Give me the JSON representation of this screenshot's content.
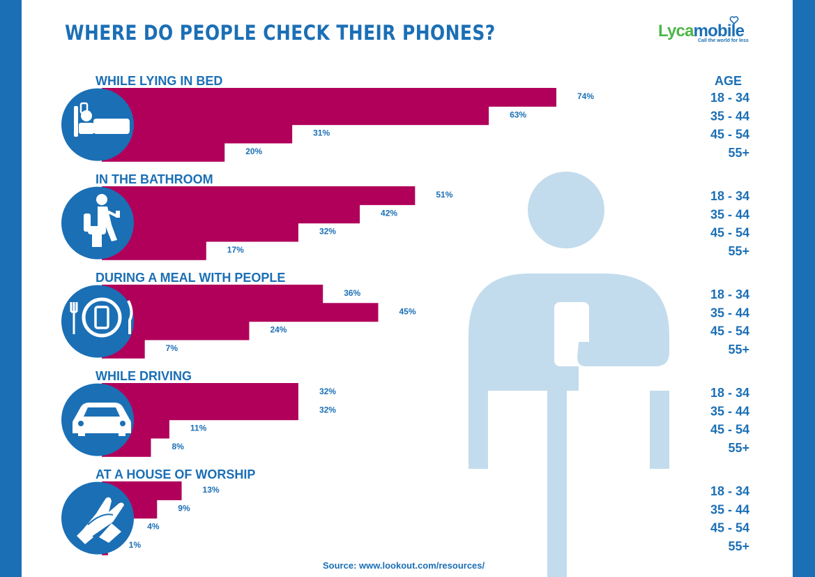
{
  "title": "WHERE DO PEOPLE CHECK THEIR PHONES?",
  "logo": {
    "name_green": "Lyca",
    "name_blue": "mobile",
    "tagline": "Call the world for less",
    "icon": "heart-icon"
  },
  "source": "Source: www.lookout.com/resources/",
  "colors": {
    "bar": "#b0005a",
    "brand_blue": "#1b6fb5",
    "figure": "#c3dced",
    "logo_green": "#4cb648"
  },
  "chart_data": {
    "type": "bar",
    "orientation": "horizontal",
    "unit": "%",
    "age_header": "AGE",
    "age_groups": [
      "18 - 34",
      "35 - 44",
      "45 - 54",
      "55+"
    ],
    "groups": [
      {
        "label": "WHILE LYING IN BED",
        "icon": "bed-icon",
        "values": [
          74,
          63,
          31,
          20
        ],
        "value_labels": [
          "74%",
          "63%",
          "31%",
          "20%"
        ]
      },
      {
        "label": "IN THE BATHROOM",
        "icon": "toilet-icon",
        "values": [
          51,
          42,
          32,
          17
        ],
        "value_labels": [
          "51%",
          "42%",
          "32%",
          "17%"
        ]
      },
      {
        "label": "DURING A MEAL WITH PEOPLE",
        "icon": "plate-phone-icon",
        "values": [
          36,
          45,
          24,
          7
        ],
        "value_labels": [
          "36%",
          "45%",
          "24%",
          "7%"
        ]
      },
      {
        "label": "WHILE DRIVING",
        "icon": "car-icon",
        "values": [
          32,
          32,
          11,
          8
        ],
        "value_labels": [
          "32%",
          "32%",
          "11%",
          "8%"
        ]
      },
      {
        "label": "AT A HOUSE OF WORSHIP",
        "icon": "praying-hands-icon",
        "values": [
          13,
          9,
          4,
          1
        ],
        "value_labels": [
          "13%",
          "9%",
          "4%",
          "1%"
        ]
      }
    ]
  }
}
